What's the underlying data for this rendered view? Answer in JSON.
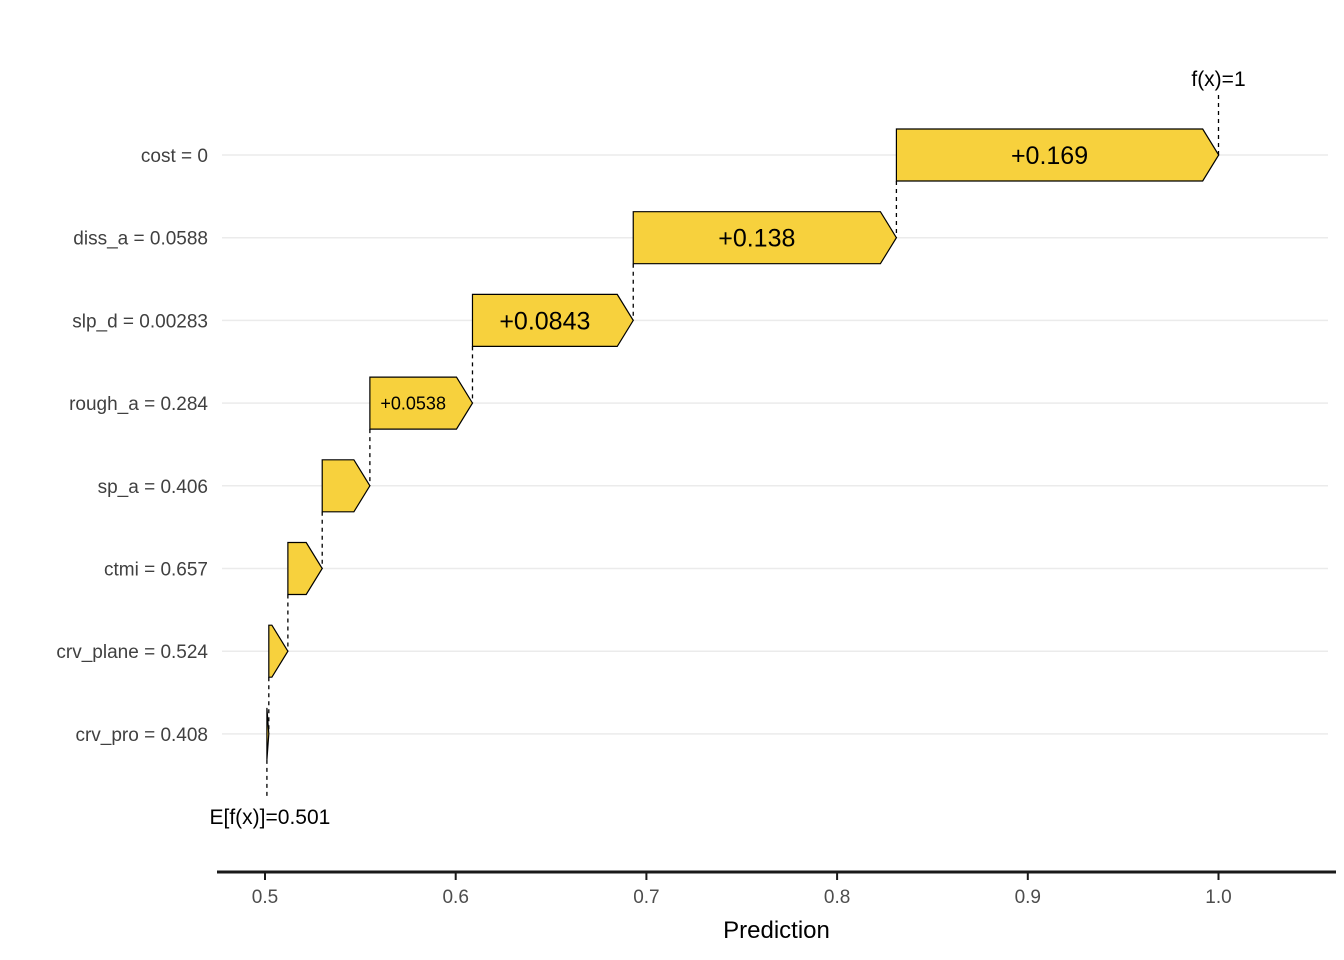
{
  "chart_data": {
    "type": "waterfall",
    "title": "",
    "xlabel": "Prediction",
    "ylabel": "",
    "xlim": [
      0.475,
      1.062
    ],
    "grid": "horizontal-only",
    "legend": "none",
    "x_ticks": [
      0.5,
      0.6,
      0.7,
      0.8,
      0.9,
      1.0
    ],
    "x_tick_labels": [
      "0.5",
      "0.6",
      "0.7",
      "0.8",
      "0.9",
      "1.0"
    ],
    "base_value": 0.501,
    "base_label": "E[f(x)]=0.501",
    "final_value": 1.0,
    "final_label": "f(x)=1",
    "rows": [
      {
        "feature": "cost",
        "label": "cost = 0",
        "contribution": 0.169,
        "bar_label": "+0.169"
      },
      {
        "feature": "diss_a",
        "label": "diss_a = 0.0588",
        "contribution": 0.138,
        "bar_label": "+0.138"
      },
      {
        "feature": "slp_d",
        "label": "slp_d = 0.00283",
        "contribution": 0.0843,
        "bar_label": "+0.0843"
      },
      {
        "feature": "rough_a",
        "label": "rough_a = 0.284",
        "contribution": 0.0538,
        "bar_label": "+0.0538"
      },
      {
        "feature": "sp_a",
        "label": "sp_a = 0.406",
        "contribution": 0.025,
        "bar_label": ""
      },
      {
        "feature": "ctmi",
        "label": "ctmi = 0.657",
        "contribution": 0.018,
        "bar_label": ""
      },
      {
        "feature": "crv_plane",
        "label": "crv_plane = 0.524",
        "contribution": 0.01,
        "bar_label": ""
      },
      {
        "feature": "crv_pro",
        "label": "crv_pro = 0.408",
        "contribution": 0.001,
        "bar_label": ""
      }
    ],
    "colors": {
      "bar_fill": "#F7D13D",
      "bar_stroke": "#000000",
      "bar_text": "#000000",
      "gridline": "#EBEBEB",
      "axis_line": "#1A1A1A",
      "feature_label": "#404040",
      "tick_label": "#4D4D4D",
      "annotation": "#000000",
      "background": "#FFFFFF"
    }
  }
}
